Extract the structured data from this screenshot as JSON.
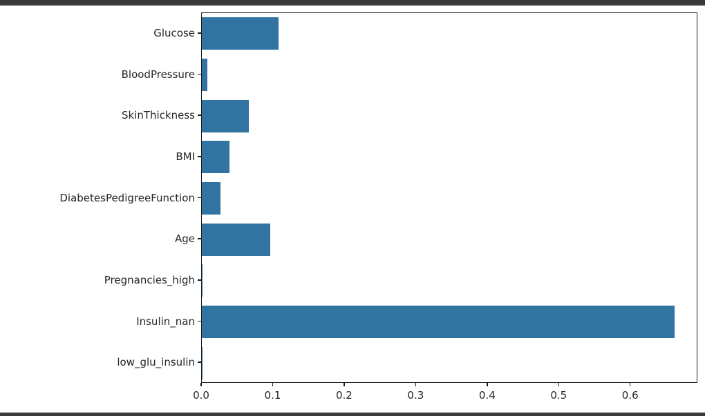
{
  "window": {
    "chrome_color": "#3a3a3a"
  },
  "chart_data": {
    "type": "bar",
    "orientation": "horizontal",
    "title": "",
    "xlabel": "",
    "ylabel": "",
    "categories": [
      "Glucose",
      "BloodPressure",
      "SkinThickness",
      "BMI",
      "DiabetesPedigreeFunction",
      "Age",
      "Pregnancies_high",
      "Insulin_nan",
      "low_glu_insulin"
    ],
    "values": [
      0.107,
      0.008,
      0.066,
      0.039,
      0.026,
      0.096,
      0.0005,
      0.661,
      0.0003
    ],
    "xticks": [
      0.0,
      0.1,
      0.2,
      0.3,
      0.4,
      0.5,
      0.6
    ],
    "xtick_labels": [
      "0.0",
      "0.1",
      "0.2",
      "0.3",
      "0.4",
      "0.5",
      "0.6"
    ],
    "xlim": [
      0,
      0.694
    ],
    "grid": false,
    "legend": false,
    "bar_color": "#3274a1",
    "spine_color": "#1a1a1a",
    "text_color": "#262626",
    "background_color": "#ffffff"
  }
}
